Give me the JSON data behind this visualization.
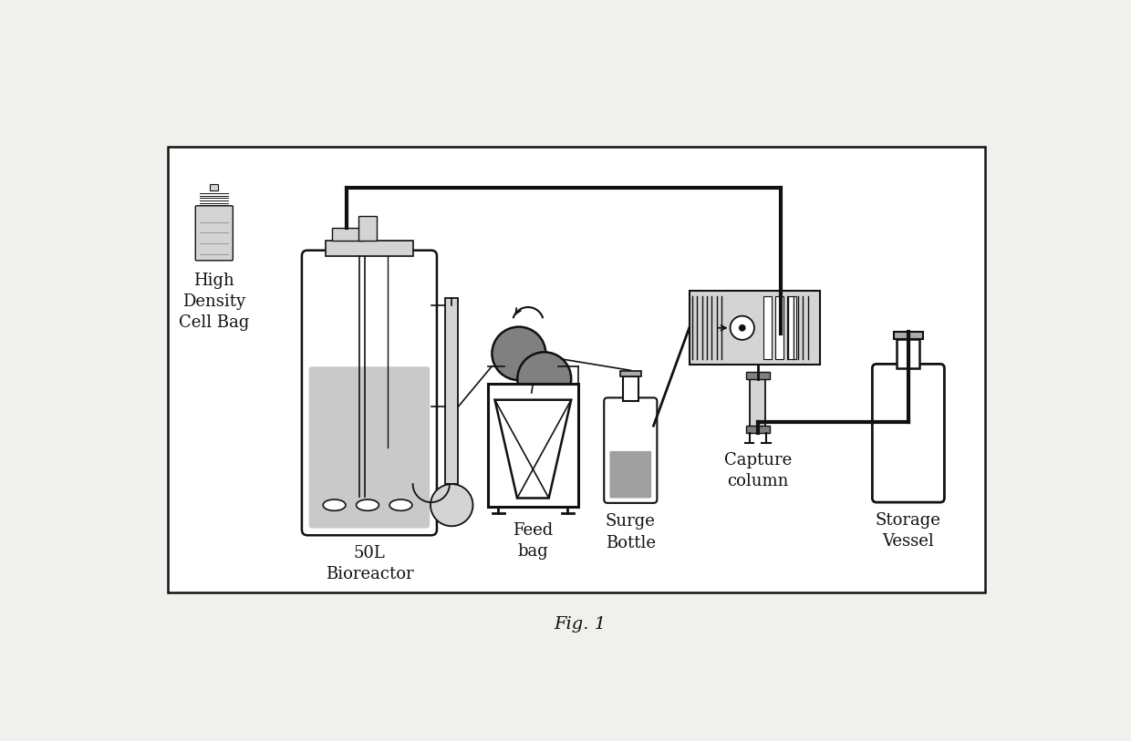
{
  "fig_width": 12.4,
  "fig_height": 8.13,
  "dpi": 100,
  "bg_color": "#f0f0ec",
  "line_color": "#111111",
  "gray_fill": "#c0c0c0",
  "dark_gray": "#808080",
  "light_gray": "#d4d4d4",
  "med_gray": "#aaaaaa",
  "caption": "Fig. 1",
  "labels": {
    "cell_bag": [
      "High",
      "Density",
      "Cell Bag"
    ],
    "bioreactor": [
      "50L",
      "Bioreactor"
    ],
    "feed_bag": [
      "Feed",
      "bag"
    ],
    "surge_bottle": [
      "Surge",
      "Bottle"
    ],
    "capture_column": [
      "Capture",
      "column"
    ],
    "storage_vessel": [
      "Storage",
      "Vessel"
    ]
  }
}
